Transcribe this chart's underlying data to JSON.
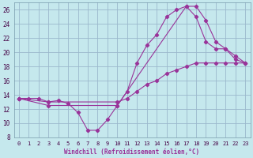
{
  "xlabel": "Windchill (Refroidissement éolien,°C)",
  "xlim": [
    -0.5,
    23.5
  ],
  "ylim": [
    8,
    27
  ],
  "xticks": [
    0,
    1,
    2,
    3,
    4,
    5,
    6,
    7,
    8,
    9,
    10,
    11,
    12,
    13,
    14,
    15,
    16,
    17,
    18,
    19,
    20,
    21,
    22,
    23
  ],
  "yticks": [
    8,
    10,
    12,
    14,
    16,
    18,
    20,
    22,
    24,
    26
  ],
  "background_color": "#c5e8ed",
  "line_color": "#993399",
  "grid_color": "#9ab8cc",
  "line1_x": [
    0,
    1,
    2,
    3,
    4,
    5,
    6,
    7,
    8,
    9,
    10,
    11,
    12,
    13,
    14,
    15,
    16,
    17,
    18,
    19,
    20,
    21,
    22,
    23
  ],
  "line1_y": [
    13.5,
    13.5,
    13.5,
    13.0,
    13.2,
    12.8,
    11.5,
    9.0,
    9.0,
    10.5,
    12.5,
    14.5,
    18.5,
    21.0,
    22.5,
    25.0,
    26.0,
    26.5,
    25.0,
    21.5,
    20.5,
    20.5,
    19.0,
    18.5
  ],
  "line2_x": [
    0,
    3,
    10,
    11,
    12,
    13,
    14,
    15,
    16,
    17,
    18,
    19,
    20,
    21,
    22,
    23
  ],
  "line2_y": [
    13.5,
    13.0,
    13.0,
    13.5,
    14.5,
    15.5,
    16.0,
    17.0,
    17.5,
    18.0,
    18.5,
    18.5,
    18.5,
    18.5,
    18.5,
    18.5
  ],
  "line3_x": [
    0,
    3,
    10,
    17,
    18,
    19,
    20,
    21,
    22,
    23
  ],
  "line3_y": [
    13.5,
    12.5,
    12.5,
    26.5,
    26.5,
    24.5,
    21.5,
    20.5,
    19.5,
    18.5
  ]
}
